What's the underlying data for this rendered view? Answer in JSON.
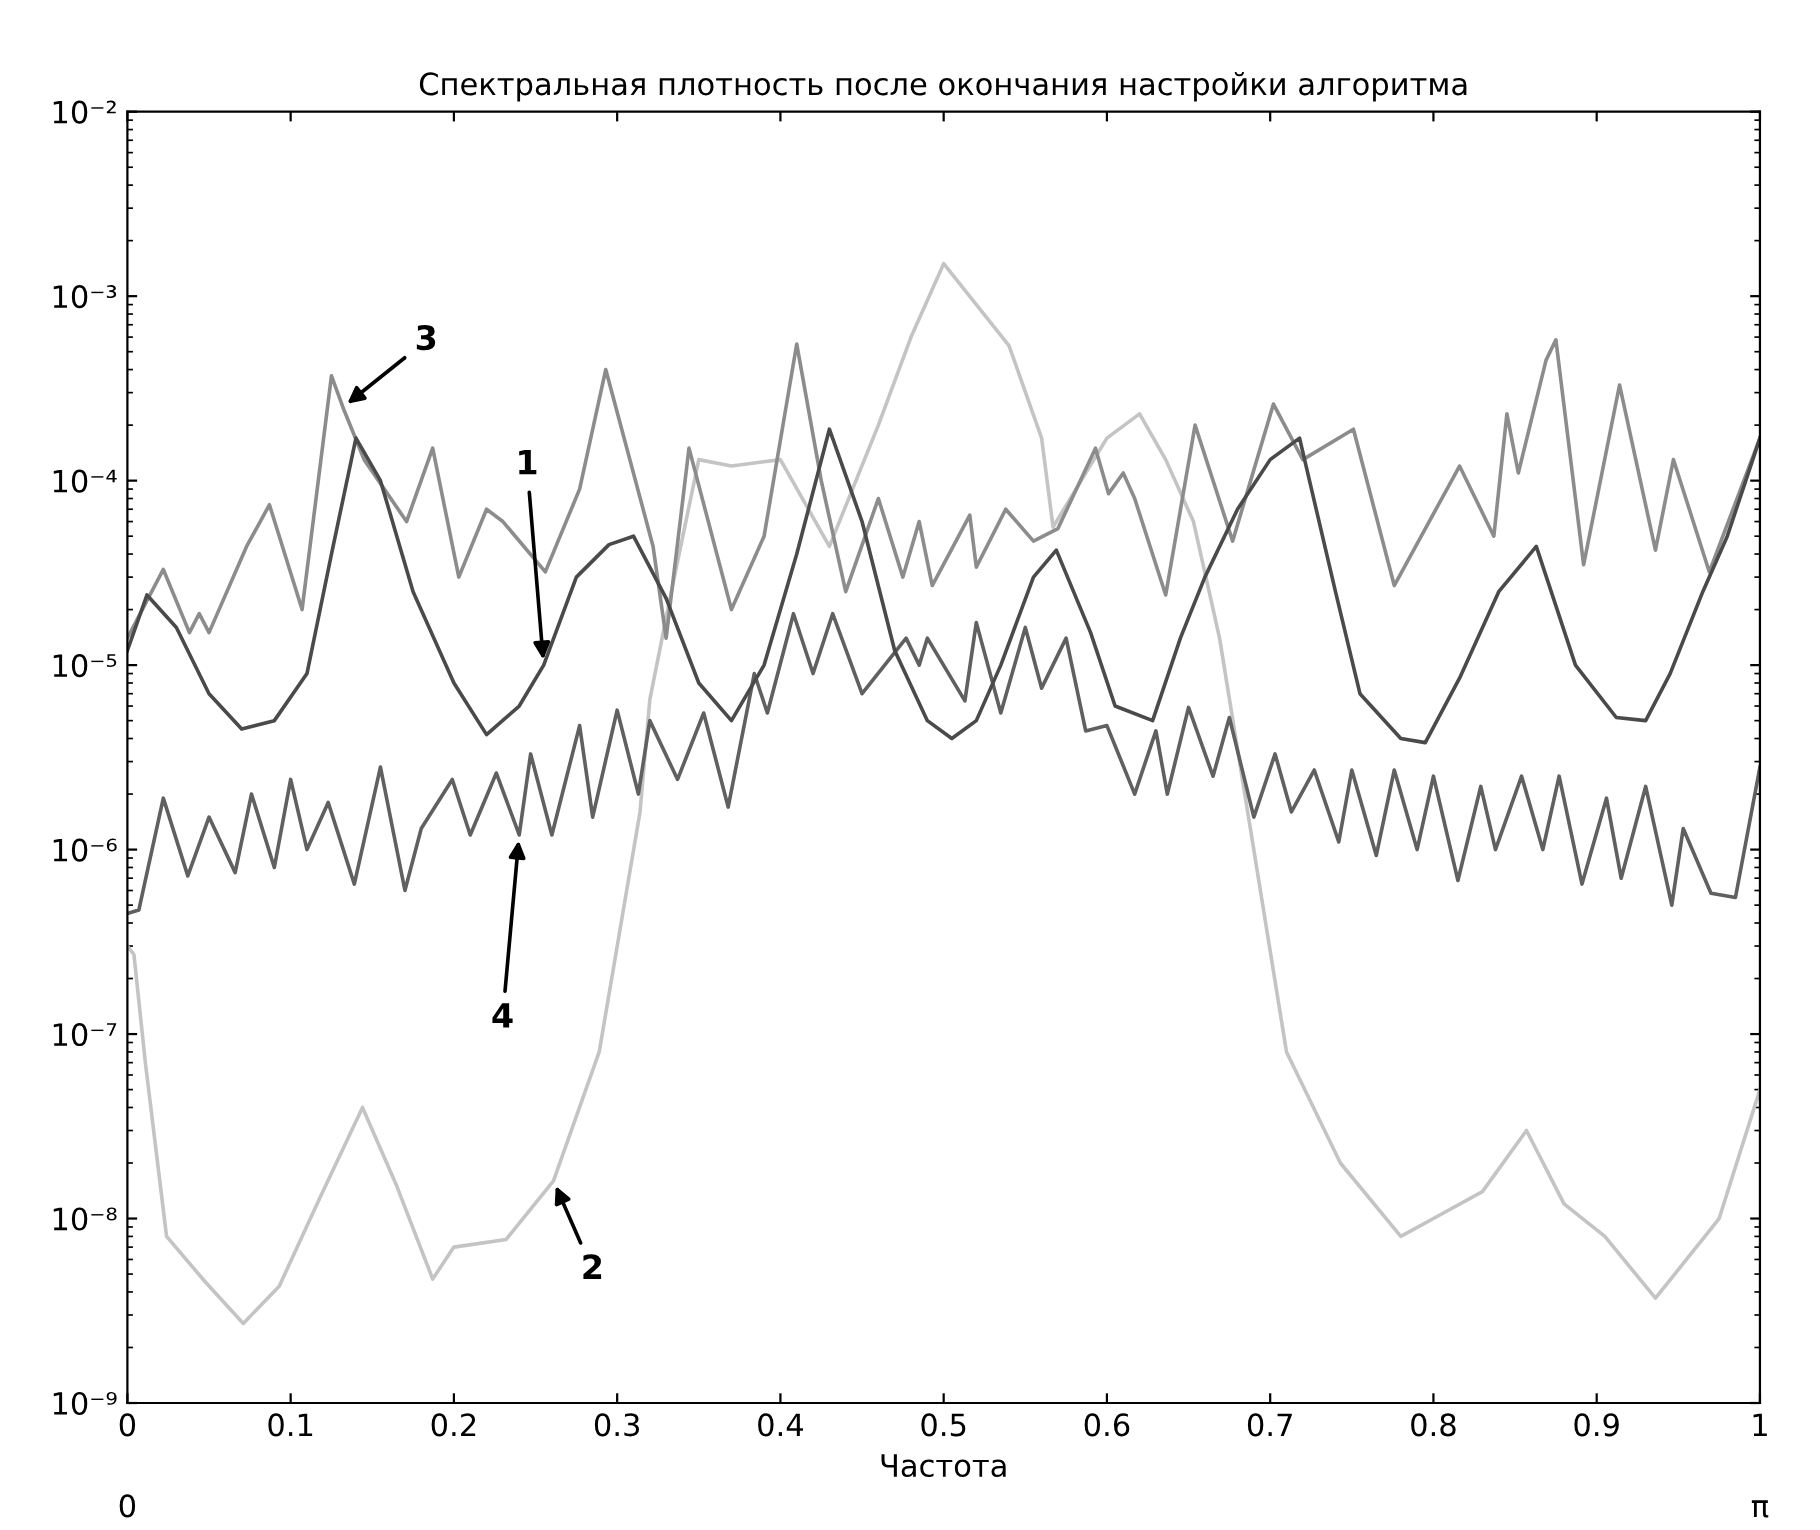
{
  "chart_data": {
    "type": "line",
    "title": "Спектральная плотность после окончания настройки алгоритма",
    "xlabel": "Частота",
    "log": "y",
    "grid": false,
    "marker": "none",
    "line_style": "solid",
    "xlim": [
      0,
      1
    ],
    "xticks": [
      0,
      0.1,
      0.2,
      0.3,
      0.4,
      0.5,
      0.6,
      0.7,
      0.8,
      0.9,
      1
    ],
    "ylim": [
      1e-09,
      0.01
    ],
    "yticks": [
      {
        "value": 1e-09,
        "label": "10⁻⁹"
      },
      {
        "value": 1e-08,
        "label": "10⁻⁸"
      },
      {
        "value": 1e-07,
        "label": "10⁻⁷"
      },
      {
        "value": 1e-06,
        "label": "10⁻⁶"
      },
      {
        "value": 1e-05,
        "label": "10⁻⁵"
      },
      {
        "value": 0.0001,
        "label": "10⁻⁴"
      },
      {
        "value": 0.001,
        "label": "10⁻³"
      },
      {
        "value": 0.01,
        "label": "10⁻²"
      }
    ],
    "series": [
      {
        "color": "#c4c4c4",
        "x": [
          0,
          0.004,
          0.011,
          0.024,
          0.048,
          0.071,
          0.093,
          0.118,
          0.144,
          0.165,
          0.187,
          0.2,
          0.232,
          0.261,
          0.289,
          0.314,
          0.32,
          0.335,
          0.35,
          0.37,
          0.4,
          0.43,
          0.46,
          0.48,
          0.5,
          0.54,
          0.56,
          0.567,
          0.6,
          0.62,
          0.636,
          0.653,
          0.669,
          0.71,
          0.743,
          0.78,
          0.8,
          0.83,
          0.857,
          0.88,
          0.905,
          0.936,
          0.955,
          0.975,
          1
        ],
        "values": [
          3e-07,
          2.7e-07,
          7e-08,
          8e-09,
          4.5e-09,
          2.7e-09,
          4.3e-09,
          1.3e-08,
          4e-08,
          1.5e-08,
          4.7e-09,
          7e-09,
          7.7e-09,
          1.6e-08,
          8e-08,
          1.6e-06,
          6.5e-06,
          3e-05,
          0.00013,
          0.00012,
          0.00013,
          4.4e-05,
          0.0002,
          0.0006,
          0.0015,
          0.00054,
          0.00017,
          5.6e-05,
          0.00017,
          0.00023,
          0.00013,
          6e-05,
          1.4e-05,
          8e-08,
          2e-08,
          8e-09,
          1e-08,
          1.4e-08,
          3e-08,
          1.2e-08,
          8e-09,
          3.7e-09,
          6e-09,
          1e-08,
          5e-08
        ]
      },
      {
        "color": "#8c8c8c",
        "x": [
          0,
          0.022,
          0.038,
          0.044,
          0.05,
          0.073,
          0.087,
          0.107,
          0.125,
          0.132,
          0.145,
          0.171,
          0.187,
          0.203,
          0.22,
          0.23,
          0.256,
          0.277,
          0.293,
          0.322,
          0.33,
          0.344,
          0.37,
          0.39,
          0.41,
          0.425,
          0.44,
          0.46,
          0.475,
          0.485,
          0.493,
          0.516,
          0.52,
          0.538,
          0.555,
          0.57,
          0.593,
          0.601,
          0.61,
          0.617,
          0.636,
          0.654,
          0.677,
          0.702,
          0.72,
          0.751,
          0.776,
          0.816,
          0.837,
          0.845,
          0.852,
          0.869,
          0.875,
          0.892,
          0.914,
          0.936,
          0.947,
          0.969,
          1
        ],
        "values": [
          1.4e-05,
          3.3e-05,
          1.5e-05,
          1.9e-05,
          1.5e-05,
          4.4e-05,
          7.4e-05,
          2e-05,
          0.00037,
          0.00025,
          0.00013,
          6e-05,
          0.00015,
          3e-05,
          7e-05,
          6e-05,
          3.2e-05,
          9e-05,
          0.0004,
          4.4e-05,
          1.4e-05,
          0.00015,
          2e-05,
          5e-05,
          0.00055,
          0.0001,
          2.5e-05,
          8e-05,
          3e-05,
          6e-05,
          2.7e-05,
          6.5e-05,
          3.4e-05,
          7e-05,
          4.7e-05,
          5.5e-05,
          0.00015,
          8.5e-05,
          0.00011,
          8e-05,
          2.4e-05,
          0.0002,
          4.7e-05,
          0.00026,
          0.00013,
          0.00019,
          2.7e-05,
          0.00012,
          5e-05,
          0.00023,
          0.00011,
          0.00045,
          0.00058,
          3.5e-05,
          0.00033,
          4.2e-05,
          0.00013,
          3.2e-05,
          0.00017
        ]
      },
      {
        "color": "#606060",
        "x": [
          0,
          0.007,
          0.022,
          0.037,
          0.05,
          0.066,
          0.076,
          0.09,
          0.1,
          0.11,
          0.123,
          0.139,
          0.155,
          0.17,
          0.18,
          0.199,
          0.21,
          0.226,
          0.24,
          0.247,
          0.26,
          0.277,
          0.285,
          0.3,
          0.313,
          0.32,
          0.337,
          0.353,
          0.368,
          0.384,
          0.392,
          0.408,
          0.42,
          0.432,
          0.45,
          0.477,
          0.485,
          0.49,
          0.513,
          0.52,
          0.535,
          0.55,
          0.56,
          0.575,
          0.587,
          0.6,
          0.617,
          0.63,
          0.637,
          0.65,
          0.665,
          0.675,
          0.69,
          0.703,
          0.713,
          0.727,
          0.742,
          0.75,
          0.765,
          0.776,
          0.79,
          0.8,
          0.815,
          0.829,
          0.838,
          0.854,
          0.867,
          0.877,
          0.891,
          0.906,
          0.915,
          0.93,
          0.946,
          0.953,
          0.97,
          0.985,
          1
        ],
        "values": [
          4.5e-07,
          4.7e-07,
          1.9e-06,
          7.2e-07,
          1.5e-06,
          7.5e-07,
          2e-06,
          8e-07,
          2.4e-06,
          1e-06,
          1.8e-06,
          6.5e-07,
          2.8e-06,
          6e-07,
          1.3e-06,
          2.4e-06,
          1.2e-06,
          2.6e-06,
          1.2e-06,
          3.3e-06,
          1.2e-06,
          4.7e-06,
          1.5e-06,
          5.7e-06,
          2e-06,
          5e-06,
          2.4e-06,
          5.5e-06,
          1.7e-06,
          9e-06,
          5.5e-06,
          1.9e-05,
          9e-06,
          1.9e-05,
          7e-06,
          1.4e-05,
          1e-05,
          1.4e-05,
          6.4e-06,
          1.7e-05,
          5.5e-06,
          1.6e-05,
          7.5e-06,
          1.4e-05,
          4.4e-06,
          4.7e-06,
          2e-06,
          4.4e-06,
          2e-06,
          5.9e-06,
          2.5e-06,
          5.2e-06,
          1.5e-06,
          3.3e-06,
          1.6e-06,
          2.7e-06,
          1.1e-06,
          2.7e-06,
          9.3e-07,
          2.7e-06,
          1e-06,
          2.5e-06,
          6.8e-07,
          2.2e-06,
          1e-06,
          2.5e-06,
          1e-06,
          2.5e-06,
          6.5e-07,
          1.9e-06,
          7e-07,
          2.2e-06,
          5e-07,
          1.3e-06,
          5.8e-07,
          5.5e-07,
          2.8e-06
        ]
      },
      {
        "color": "#4a4a4a",
        "x": [
          0,
          0.012,
          0.03,
          0.05,
          0.07,
          0.09,
          0.11,
          0.125,
          0.14,
          0.155,
          0.175,
          0.2,
          0.22,
          0.24,
          0.255,
          0.275,
          0.295,
          0.31,
          0.33,
          0.35,
          0.37,
          0.39,
          0.41,
          0.43,
          0.45,
          0.47,
          0.49,
          0.505,
          0.52,
          0.535,
          0.555,
          0.569,
          0.59,
          0.605,
          0.628,
          0.645,
          0.66,
          0.68,
          0.7,
          0.718,
          0.74,
          0.755,
          0.78,
          0.795,
          0.816,
          0.84,
          0.863,
          0.887,
          0.912,
          0.93,
          0.945,
          0.965,
          0.98,
          1
        ],
        "values": [
          1.2e-05,
          2.4e-05,
          1.6e-05,
          7e-06,
          4.5e-06,
          5e-06,
          9e-06,
          4e-05,
          0.00017,
          0.0001,
          2.5e-05,
          8e-06,
          4.2e-06,
          6e-06,
          1e-05,
          3e-05,
          4.5e-05,
          5e-05,
          2.3e-05,
          8e-06,
          5e-06,
          1e-05,
          4e-05,
          0.00019,
          6e-05,
          1.2e-05,
          5e-06,
          4e-06,
          5e-06,
          1e-05,
          3e-05,
          4.2e-05,
          1.5e-05,
          6e-06,
          5e-06,
          1.4e-05,
          3e-05,
          7e-05,
          0.00013,
          0.00017,
          2.5e-05,
          7e-06,
          4e-06,
          3.8e-06,
          8.5e-06,
          2.5e-05,
          4.4e-05,
          1e-05,
          5.2e-06,
          5e-06,
          9e-06,
          2.5e-05,
          5e-05,
          0.00017
        ]
      }
    ],
    "annotations": [
      {
        "text": "1",
        "x": 0.255,
        "y": 1e-05
      },
      {
        "text": "2",
        "x": 0.261,
        "y": 1.6e-08
      },
      {
        "text": "3",
        "x": 0.132,
        "y": 0.00025
      },
      {
        "text": "4",
        "x": 0.24,
        "y": 1.2e-06
      },
      "0",
      "π"
    ]
  }
}
